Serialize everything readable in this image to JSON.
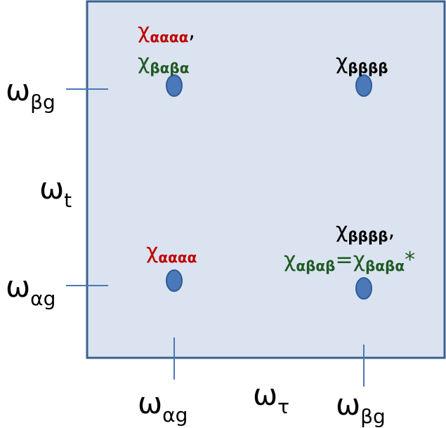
{
  "colors": {
    "panel_fill": "#dbe3f0",
    "panel_border": "#3b5f8e",
    "dot_fill": "#4a78b8",
    "dot_stroke": "#2f5c99",
    "tick": "#4a78b8",
    "red": "#c00000",
    "green": "#1f5a22",
    "black": "#000000"
  },
  "axes": {
    "y_upper": {
      "main": "ω",
      "sub": "βg"
    },
    "y_middle": {
      "main": "ω",
      "sub": "t"
    },
    "y_lower": {
      "main": "ω",
      "sub": "αg"
    },
    "x_left": {
      "main": "ω",
      "sub": "αg"
    },
    "x_middle": {
      "main": "ω",
      "sub": "τ"
    },
    "x_right": {
      "main": "ω",
      "sub": "βg"
    }
  },
  "peaks": {
    "top_left": [
      {
        "main": "χ",
        "sub": "αααα",
        "suffix": ",",
        "color": "red"
      },
      {
        "main": "χ",
        "sub": "βαβα",
        "suffix": "",
        "color": "green"
      }
    ],
    "top_right": [
      {
        "main": "χ",
        "sub": "ββββ",
        "suffix": "",
        "color": "black"
      }
    ],
    "bottom_left": [
      {
        "main": "χ",
        "sub": "αααα",
        "suffix": "",
        "color": "red"
      }
    ],
    "bottom_right": {
      "line1": {
        "main": "χ",
        "sub": "ββββ",
        "suffix": ",",
        "color": "black"
      },
      "line2_left": {
        "main": "χ",
        "sub": "αβαβ"
      },
      "line2_eq": "=",
      "line2_right": {
        "main": "χ",
        "sub": "βαβα",
        "suffix": "*"
      },
      "line2_color": "green"
    }
  }
}
